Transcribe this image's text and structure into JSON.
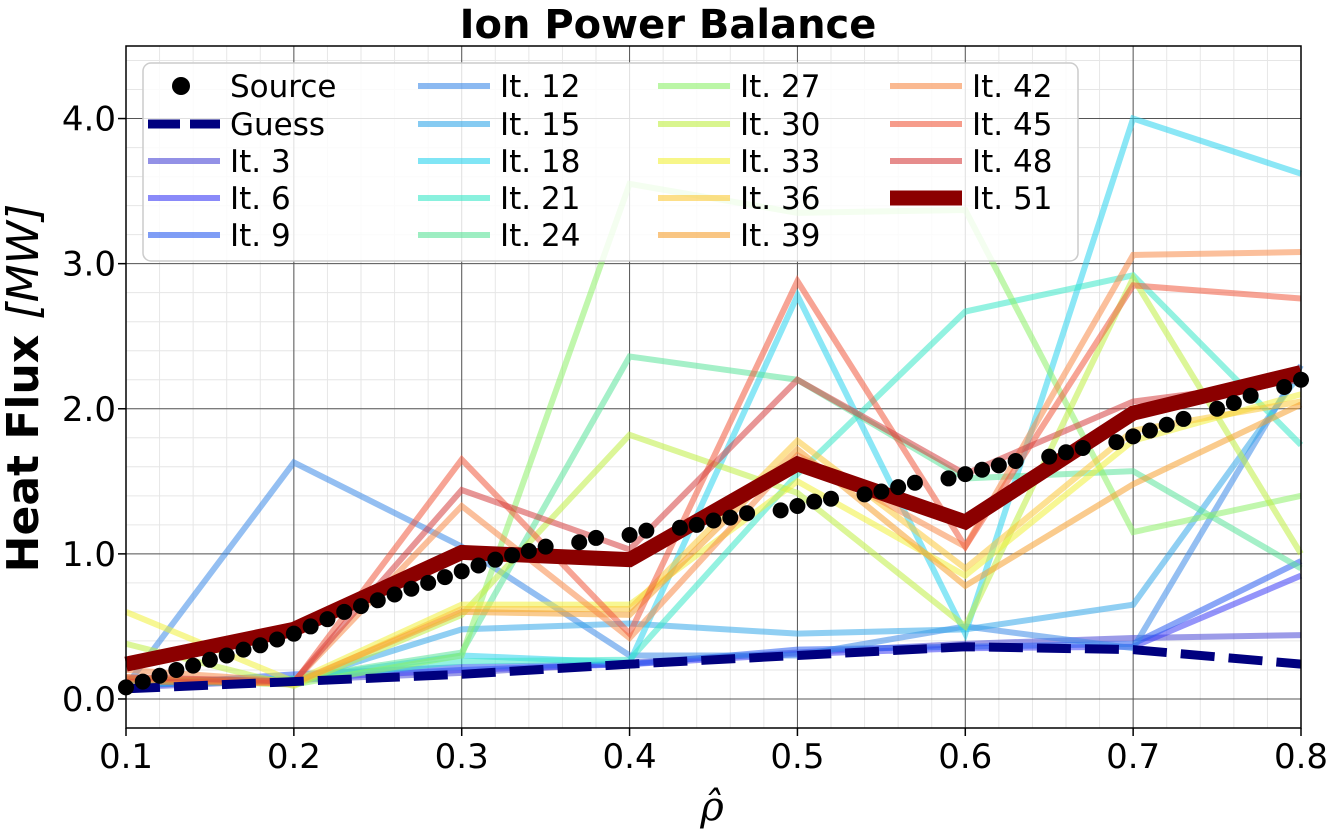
{
  "chart_data": {
    "type": "line",
    "title": "Ion Power Balance",
    "xlabel": "ρ̂",
    "ylabel": "Heat Flux",
    "ylabel_unit": "[MW]",
    "xlim": [
      0.1,
      0.8
    ],
    "ylim": [
      -0.2,
      4.5
    ],
    "xticks": [
      0.1,
      0.2,
      0.3,
      0.4,
      0.5,
      0.6,
      0.7,
      0.8
    ],
    "xtick_labels": [
      "0.1",
      "0.2",
      "0.3",
      "0.4",
      "0.5",
      "0.6",
      "0.7",
      "0.8"
    ],
    "yticks": [
      0.0,
      1.0,
      2.0,
      3.0,
      4.0
    ],
    "ytick_labels": [
      "0.0",
      "1.0",
      "2.0",
      "3.0",
      "4.0"
    ],
    "grid": true,
    "legend_placement": "top-left, 4 columns",
    "source": {
      "name": "Source",
      "color": "#000000",
      "x": [
        0.1,
        0.11,
        0.12,
        0.13,
        0.14,
        0.15,
        0.16,
        0.17,
        0.18,
        0.19,
        0.2,
        0.21,
        0.22,
        0.23,
        0.24,
        0.25,
        0.26,
        0.27,
        0.28,
        0.29,
        0.3,
        0.31,
        0.32,
        0.33,
        0.34,
        0.35,
        0.37,
        0.38,
        0.4,
        0.41,
        0.43,
        0.44,
        0.45,
        0.46,
        0.47,
        0.49,
        0.5,
        0.51,
        0.52,
        0.54,
        0.55,
        0.56,
        0.57,
        0.59,
        0.6,
        0.61,
        0.62,
        0.63,
        0.65,
        0.66,
        0.67,
        0.69,
        0.7,
        0.71,
        0.72,
        0.73,
        0.75,
        0.76,
        0.77,
        0.79,
        0.8
      ],
      "y": [
        0.08,
        0.12,
        0.16,
        0.2,
        0.23,
        0.27,
        0.3,
        0.34,
        0.37,
        0.41,
        0.45,
        0.5,
        0.55,
        0.6,
        0.64,
        0.68,
        0.72,
        0.76,
        0.8,
        0.84,
        0.88,
        0.92,
        0.96,
        0.99,
        1.02,
        1.05,
        1.08,
        1.11,
        1.13,
        1.16,
        1.18,
        1.2,
        1.23,
        1.25,
        1.28,
        1.3,
        1.33,
        1.36,
        1.38,
        1.41,
        1.43,
        1.46,
        1.49,
        1.52,
        1.55,
        1.58,
        1.61,
        1.64,
        1.67,
        1.7,
        1.73,
        1.77,
        1.81,
        1.85,
        1.89,
        1.93,
        2.0,
        2.04,
        2.09,
        2.15,
        2.2
      ]
    },
    "guess": {
      "name": "Guess",
      "color": "#00007f",
      "x": [
        0.1,
        0.2,
        0.3,
        0.4,
        0.5,
        0.6,
        0.7,
        0.8
      ],
      "y": [
        0.07,
        0.12,
        0.17,
        0.24,
        0.3,
        0.36,
        0.34,
        0.24
      ]
    },
    "x": [
      0.1,
      0.2,
      0.3,
      0.4,
      0.5,
      0.6,
      0.7,
      0.8
    ],
    "series": [
      {
        "name": "It. 3",
        "color": "#4b48d6",
        "values": [
          0.08,
          0.13,
          0.18,
          0.25,
          0.32,
          0.38,
          0.42,
          0.44
        ]
      },
      {
        "name": "It. 6",
        "color": "#3c3cf5",
        "values": [
          0.09,
          0.14,
          0.2,
          0.24,
          0.31,
          0.35,
          0.36,
          0.85
        ]
      },
      {
        "name": "It. 9",
        "color": "#2a5cf0",
        "values": [
          0.09,
          0.17,
          0.22,
          0.24,
          0.34,
          0.36,
          0.38,
          0.95
        ]
      },
      {
        "name": "It. 12",
        "color": "#3d8be8",
        "values": [
          0.09,
          1.63,
          1.05,
          0.3,
          0.3,
          0.5,
          0.35,
          2.3
        ]
      },
      {
        "name": "It. 15",
        "color": "#35a8ea",
        "values": [
          0.1,
          0.12,
          0.48,
          0.52,
          0.45,
          0.48,
          0.65,
          2.25
        ]
      },
      {
        "name": "It. 18",
        "color": "#2bd3ee",
        "values": [
          0.12,
          0.14,
          0.3,
          0.25,
          2.78,
          0.45,
          4.0,
          3.62
        ]
      },
      {
        "name": "It. 21",
        "color": "#3ae8c8",
        "values": [
          0.11,
          0.13,
          0.26,
          0.27,
          1.55,
          2.67,
          2.92,
          1.75
        ]
      },
      {
        "name": "It. 24",
        "color": "#5be39a",
        "values": [
          0.12,
          0.14,
          0.32,
          2.36,
          2.2,
          1.52,
          1.57,
          0.9
        ]
      },
      {
        "name": "It. 27",
        "color": "#8ef06a",
        "values": [
          0.13,
          0.1,
          0.3,
          3.55,
          3.35,
          3.37,
          1.15,
          1.4
        ]
      },
      {
        "name": "It. 30",
        "color": "#c0ef43",
        "values": [
          0.38,
          0.09,
          0.58,
          1.82,
          1.42,
          0.5,
          2.9,
          1.0
        ]
      },
      {
        "name": "It. 33",
        "color": "#f1f03a",
        "values": [
          0.6,
          0.12,
          0.65,
          0.65,
          1.5,
          0.85,
          1.78,
          2.1
        ]
      },
      {
        "name": "It. 36",
        "color": "#fbc93a",
        "values": [
          0.15,
          0.1,
          0.62,
          0.62,
          1.78,
          0.9,
          1.85,
          2.05
        ]
      },
      {
        "name": "It. 39",
        "color": "#f5a030",
        "values": [
          0.14,
          0.11,
          0.6,
          0.58,
          1.72,
          0.78,
          1.48,
          2.03
        ]
      },
      {
        "name": "It. 42",
        "color": "#f78a48",
        "values": [
          0.2,
          0.12,
          1.33,
          0.42,
          1.68,
          1.05,
          3.06,
          3.08
        ]
      },
      {
        "name": "It. 45",
        "color": "#f05a3e",
        "values": [
          0.12,
          0.11,
          1.65,
          0.45,
          2.88,
          1.05,
          2.85,
          2.76
        ]
      },
      {
        "name": "It. 48",
        "color": "#d53f3f",
        "values": [
          0.15,
          0.12,
          1.44,
          1.03,
          2.2,
          1.55,
          2.05,
          2.2
        ]
      },
      {
        "name": "It. 51",
        "color": "#8b0000",
        "values": [
          0.24,
          0.48,
          1.01,
          0.96,
          1.62,
          1.22,
          1.97,
          2.25
        ]
      }
    ]
  }
}
